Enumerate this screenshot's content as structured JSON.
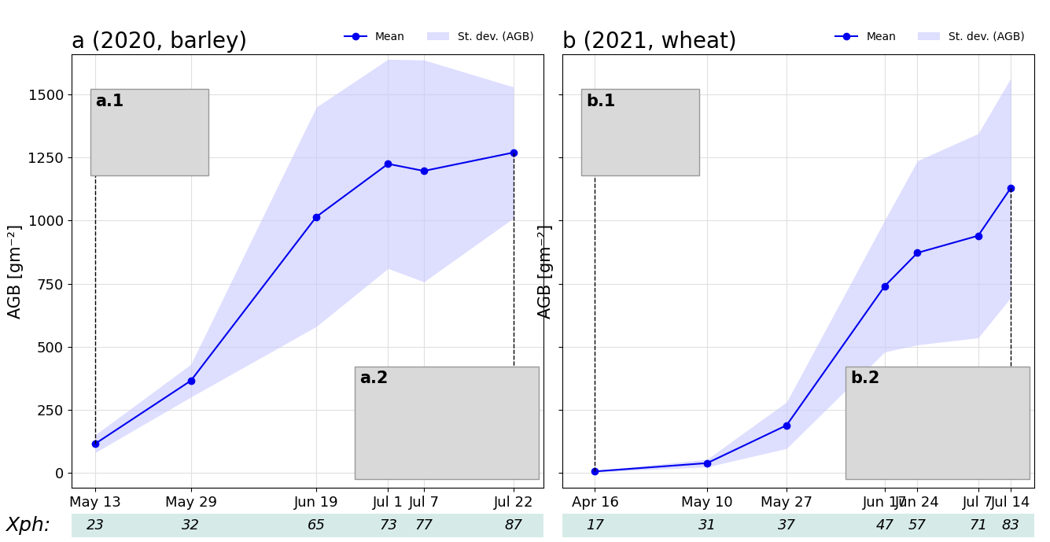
{
  "x_ph_label": "Xph:",
  "chart_data": [
    {
      "type": "line",
      "title": "a (2020, barley)",
      "y_label": "AGB [gm⁻²]",
      "x": [
        "May 13",
        "May 29",
        "Jun 19",
        "Jul 1",
        "Jul 7",
        "Jul 22"
      ],
      "xlim": [
        "May 9",
        "Jul 27"
      ],
      "series": [
        {
          "name": "Mean",
          "color": "#0000ee",
          "marker": "o",
          "values": [
            115,
            365,
            1015,
            1225,
            1197,
            1270
          ]
        }
      ],
      "std": {
        "name": "St. dev. (AGB)",
        "color": "#c8c8ff",
        "values": [
          35,
          65,
          435,
          415,
          440,
          260
        ]
      },
      "x_ph": [
        23,
        32,
        65,
        73,
        77,
        87
      ],
      "photos": [
        "a.1",
        "a.2"
      ],
      "ylim": [
        -60,
        1660
      ],
      "yticks": [
        0,
        250,
        500,
        750,
        1000,
        1250,
        1500
      ],
      "grid": true,
      "legend": "upper right"
    },
    {
      "type": "line",
      "title": "b (2021, wheat)",
      "y_label": "AGB [gm⁻²]",
      "x": [
        "Apr 16",
        "May 10",
        "May 27",
        "Jun 17",
        "Jun 24",
        "Jul 7",
        "Jul 14"
      ],
      "xlim": [
        "Apr 9",
        "Jul 19"
      ],
      "series": [
        {
          "name": "Mean",
          "color": "#0000ee",
          "marker": "o",
          "values": [
            5,
            38,
            188,
            740,
            872,
            940,
            1130
          ]
        }
      ],
      "std": {
        "name": "St. dev. (AGB)",
        "color": "#c8c8ff",
        "values": [
          3,
          15,
          92,
          261,
          365,
          405,
          435
        ]
      },
      "x_ph": [
        17,
        31,
        37,
        47,
        57,
        71,
        83
      ],
      "photos": [
        "b.1",
        "b.2"
      ],
      "ylim": [
        -60,
        1660
      ],
      "yticks": [
        0,
        250,
        500,
        750,
        1000,
        1250,
        1500
      ],
      "grid": true,
      "legend": "upper right",
      "tick_labels": "x"
    }
  ]
}
